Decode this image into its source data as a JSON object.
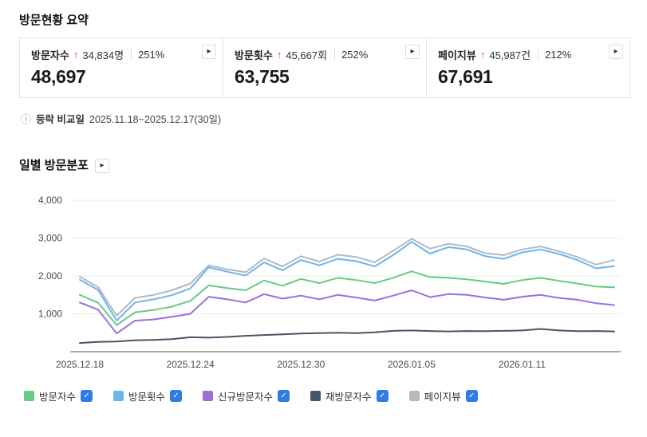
{
  "header": {
    "title": "방문현황 요약"
  },
  "icons": {
    "up_arrow": "↑",
    "detail_arrow": "▸",
    "info": "ⓘ",
    "check": "✓"
  },
  "colors": {
    "accent_red": "#f0414b",
    "checkbox_blue": "#2f7ce4",
    "grid": "#ececec",
    "axis": "#555"
  },
  "summary_cards": [
    {
      "label": "방문자수",
      "delta": "34,834명",
      "percent": "251%",
      "value": "48,697"
    },
    {
      "label": "방문횟수",
      "delta": "45,667회",
      "percent": "252%",
      "value": "63,755"
    },
    {
      "label": "페이지뷰",
      "delta": "45,987건",
      "percent": "212%",
      "value": "67,691"
    }
  ],
  "compare_info": {
    "label": "등락 비교일",
    "range": "2025.11.18~2025.12.17(30일)"
  },
  "section": {
    "title": "일별 방문분포"
  },
  "chart_data": {
    "type": "line",
    "n_points": 30,
    "x_labels": [
      "2025.12.18",
      "2025.12.24",
      "2025.12.30",
      "2026.01.05",
      "2026.01.11"
    ],
    "x_label_indices": [
      0,
      6,
      12,
      18,
      24
    ],
    "ylim": [
      0,
      4000
    ],
    "y_ticks": [
      1000,
      2000,
      3000,
      4000
    ],
    "y_tick_labels": [
      "1,000",
      "2,000",
      "3,000",
      "4,000"
    ],
    "grid": true,
    "legend_position": "bottom",
    "series": [
      {
        "name": "방문자수",
        "color": "#69c987",
        "checked": true,
        "values": [
          1500,
          1290,
          700,
          1040,
          1100,
          1190,
          1340,
          1750,
          1680,
          1620,
          1880,
          1740,
          1920,
          1810,
          1950,
          1890,
          1810,
          1950,
          2120,
          1970,
          1950,
          1910,
          1850,
          1790,
          1890,
          1950,
          1870,
          1800,
          1720,
          1700
        ]
      },
      {
        "name": "방문횟수",
        "color": "#6fb5e8",
        "checked": true,
        "values": [
          1900,
          1630,
          820,
          1300,
          1380,
          1490,
          1670,
          2230,
          2110,
          2010,
          2360,
          2150,
          2420,
          2280,
          2450,
          2390,
          2250,
          2550,
          2900,
          2590,
          2760,
          2700,
          2520,
          2450,
          2620,
          2700,
          2580,
          2420,
          2200,
          2260
        ]
      },
      {
        "name": "신규방문자수",
        "color": "#9b6fdc",
        "checked": true,
        "values": [
          1300,
          1110,
          480,
          820,
          850,
          920,
          1000,
          1450,
          1380,
          1300,
          1520,
          1400,
          1480,
          1380,
          1500,
          1430,
          1350,
          1480,
          1620,
          1440,
          1520,
          1500,
          1430,
          1370,
          1450,
          1500,
          1420,
          1370,
          1280,
          1230
        ]
      },
      {
        "name": "재방문자수",
        "color": "#475569",
        "checked": true,
        "values": [
          230,
          260,
          270,
          300,
          310,
          330,
          380,
          370,
          390,
          420,
          440,
          460,
          480,
          490,
          500,
          490,
          510,
          550,
          560,
          545,
          535,
          545,
          540,
          550,
          560,
          600,
          560,
          540,
          545,
          535
        ]
      },
      {
        "name": "페이지뷰",
        "color": "#b4bac2",
        "checked": true,
        "values": [
          1980,
          1700,
          950,
          1420,
          1500,
          1620,
          1800,
          2280,
          2170,
          2100,
          2460,
          2250,
          2520,
          2380,
          2560,
          2500,
          2360,
          2660,
          2980,
          2720,
          2850,
          2780,
          2600,
          2550,
          2700,
          2780,
          2650,
          2500,
          2300,
          2420
        ]
      }
    ]
  }
}
